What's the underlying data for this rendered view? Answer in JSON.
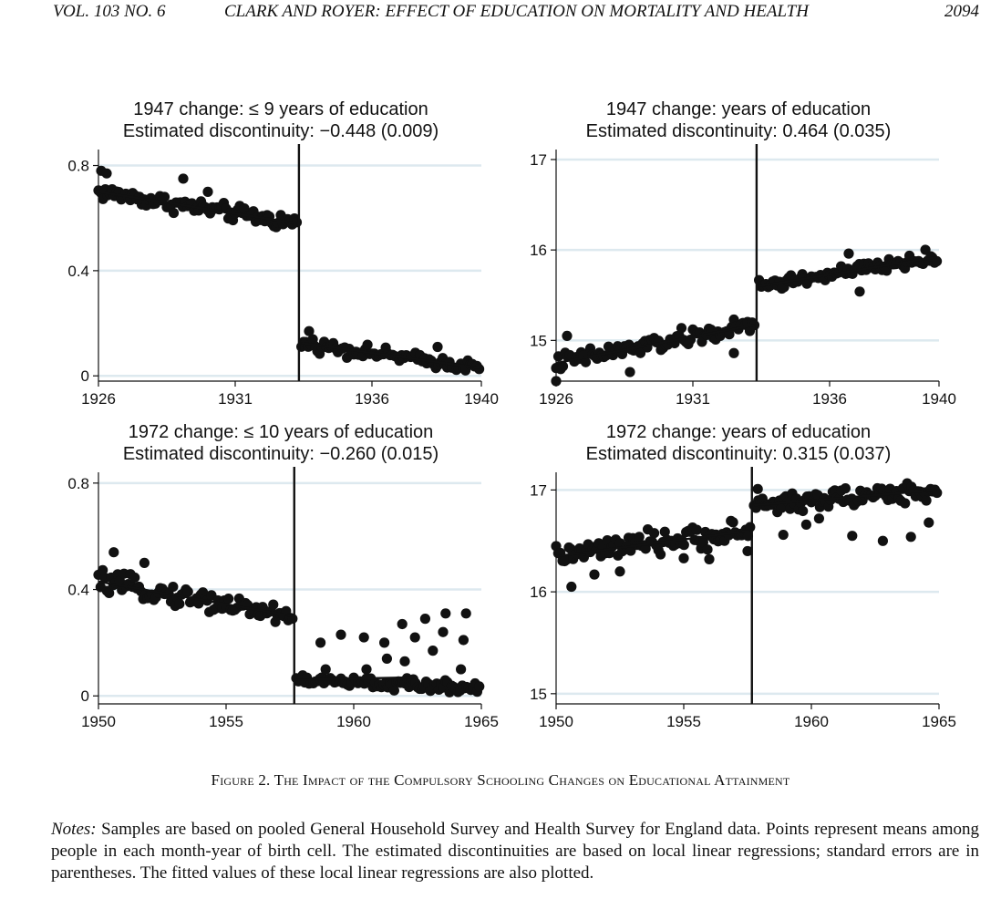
{
  "running_head": {
    "volume": "VOL. 103 NO. 6",
    "title": "CLARK AND ROYER: EFFECT OF EDUCATION ON MORTALITY AND HEALTH",
    "page": "2094"
  },
  "figure": {
    "caption": "Figure 2. The Impact of the Compulsory Schooling Changes on Educational Attainment",
    "notes_lead": "Notes:",
    "notes_text": "Samples are based on pooled General Household Survey and Health Survey for England data. Points represent means among people in each month-year of birth cell. The estimated discontinuities are based on local linear regressions; standard errors are in parentheses. The fitted values of these local linear regressions are also plotted."
  },
  "chart_data": [
    {
      "type": "scatter",
      "title": "1947 change: ≤ 9 years of education",
      "subtitle": "Estimated discontinuity: −0.448 (0.009)",
      "xlim": [
        1926,
        1940
      ],
      "ylim": [
        -0.02,
        0.84
      ],
      "x_ticks": [
        1926,
        1931,
        1936,
        1940
      ],
      "x_tick_labels": [
        "1926",
        "1931",
        "1936",
        "1940"
      ],
      "y_ticks": [
        0,
        0.4,
        0.8
      ],
      "y_tick_labels": [
        "0",
        "0.4",
        "0.8"
      ],
      "cutoff": 1933.33,
      "grid": true,
      "pre": {
        "x0": 1926,
        "x1": 1933.25,
        "y0": 0.7,
        "y1": 0.58,
        "spread": 0.028
      },
      "post": {
        "x0": 1933.42,
        "x1": 1939.92,
        "y0": 0.125,
        "y1": 0.03,
        "spread": 0.022
      },
      "outliers": [
        [
          1926.1,
          0.78
        ],
        [
          1926.3,
          0.77
        ],
        [
          1929.1,
          0.75
        ],
        [
          1930.0,
          0.7
        ],
        [
          1933.7,
          0.17
        ],
        [
          1938.4,
          0.11
        ]
      ],
      "fit": [
        {
          "x": [
            1926,
            1933.25
          ],
          "y": [
            0.7,
            0.58
          ]
        },
        {
          "x": [
            1933.42,
            1939.92
          ],
          "y": [
            0.125,
            0.03
          ]
        }
      ]
    },
    {
      "type": "scatter",
      "title": "1947 change: years of education",
      "subtitle": "Estimated discontinuity: 0.464 (0.035)",
      "xlim": [
        1926,
        1940
      ],
      "ylim": [
        14.55,
        17.05
      ],
      "x_ticks": [
        1926,
        1931,
        1936,
        1940
      ],
      "x_tick_labels": [
        "1926",
        "1931",
        "1936",
        "1940"
      ],
      "y_ticks": [
        15,
        16,
        17
      ],
      "y_tick_labels": [
        "15",
        "16",
        "17"
      ],
      "cutoff": 1933.33,
      "grid": true,
      "pre": {
        "x0": 1926,
        "x1": 1933.25,
        "y0": 14.75,
        "y1": 15.17,
        "spread": 0.09
      },
      "post": {
        "x0": 1933.42,
        "x1": 1939.92,
        "y0": 15.6,
        "y1": 15.92,
        "spread": 0.07
      },
      "outliers": [
        [
          1926.0,
          14.55
        ],
        [
          1926.4,
          15.05
        ],
        [
          1928.7,
          14.65
        ],
        [
          1932.5,
          14.86
        ],
        [
          1936.7,
          15.96
        ],
        [
          1937.1,
          15.54
        ],
        [
          1939.7,
          15.93
        ]
      ],
      "fit": [
        {
          "x": [
            1926,
            1933.25
          ],
          "y": [
            14.75,
            15.17
          ]
        },
        {
          "x": [
            1933.42,
            1939.92
          ],
          "y": [
            15.6,
            15.92
          ]
        }
      ]
    },
    {
      "type": "scatter",
      "title": "1972 change: ≤ 10 years of education",
      "subtitle": "Estimated discontinuity: −0.260 (0.015)",
      "xlim": [
        1950,
        1965
      ],
      "ylim": [
        -0.03,
        0.82
      ],
      "x_ticks": [
        1950,
        1955,
        1960,
        1965
      ],
      "x_tick_labels": [
        "1950",
        "1955",
        "1960",
        "1965"
      ],
      "y_ticks": [
        0,
        0.4,
        0.8
      ],
      "y_tick_labels": [
        "0",
        "0.4",
        "0.8"
      ],
      "cutoff": 1957.67,
      "grid": true,
      "pre": {
        "x0": 1950,
        "x1": 1957.6,
        "y0": 0.43,
        "y1": 0.3,
        "spread": 0.035
      },
      "post": {
        "x0": 1957.75,
        "x1": 1964.92,
        "y0": 0.06,
        "y1": 0.03,
        "spread": 0.02
      },
      "outliers": [
        [
          1950.6,
          0.54
        ],
        [
          1951.8,
          0.5
        ],
        [
          1958.7,
          0.2
        ],
        [
          1959.5,
          0.23
        ],
        [
          1960.4,
          0.22
        ],
        [
          1961.2,
          0.2
        ],
        [
          1961.9,
          0.27
        ],
        [
          1962.4,
          0.22
        ],
        [
          1962.8,
          0.29
        ],
        [
          1963.5,
          0.24
        ],
        [
          1963.6,
          0.31
        ],
        [
          1964.4,
          0.31
        ],
        [
          1964.3,
          0.21
        ],
        [
          1963.1,
          0.17
        ],
        [
          1962.0,
          0.13
        ],
        [
          1961.3,
          0.14
        ],
        [
          1960.5,
          0.1
        ],
        [
          1964.2,
          0.1
        ],
        [
          1958.9,
          0.1
        ]
      ],
      "fit": [
        {
          "x": [
            1950,
            1957.6
          ],
          "y": [
            0.43,
            0.3
          ]
        },
        {
          "x": [
            1957.75,
            1962.5
          ],
          "y": [
            0.06,
            0.07
          ]
        }
      ]
    },
    {
      "type": "scatter",
      "title": "1972 change: years of education",
      "subtitle": "Estimated discontinuity: 0.315 (0.037)",
      "xlim": [
        1950,
        1965
      ],
      "ylim": [
        14.9,
        17.12
      ],
      "x_ticks": [
        1950,
        1955,
        1960,
        1965
      ],
      "x_tick_labels": [
        "1950",
        "1955",
        "1960",
        "1965"
      ],
      "y_ticks": [
        15,
        16,
        17
      ],
      "y_tick_labels": [
        "15",
        "16",
        "17"
      ],
      "cutoff": 1957.67,
      "grid": true,
      "pre": {
        "x0": 1950,
        "x1": 1957.6,
        "y0": 16.35,
        "y1": 16.6,
        "spread": 0.1
      },
      "post": {
        "x0": 1957.75,
        "x1": 1964.92,
        "y0": 16.85,
        "y1": 17.0,
        "spread": 0.09
      },
      "outliers": [
        [
          1950.6,
          16.05
        ],
        [
          1951.5,
          16.17
        ],
        [
          1952.5,
          16.2
        ],
        [
          1955.0,
          16.33
        ],
        [
          1956.0,
          16.32
        ],
        [
          1957.9,
          17.01
        ],
        [
          1958.9,
          16.56
        ],
        [
          1961.6,
          16.55
        ],
        [
          1962.8,
          16.5
        ],
        [
          1963.9,
          16.54
        ],
        [
          1964.6,
          16.68
        ],
        [
          1960.3,
          16.72
        ],
        [
          1959.8,
          16.66
        ],
        [
          1957.5,
          16.4
        ]
      ],
      "fit": [
        {
          "x": [
            1950,
            1957.6
          ],
          "y": [
            16.35,
            16.6
          ]
        },
        {
          "x": [
            1957.75,
            1964.92
          ],
          "y": [
            16.85,
            17.0
          ]
        }
      ]
    }
  ]
}
